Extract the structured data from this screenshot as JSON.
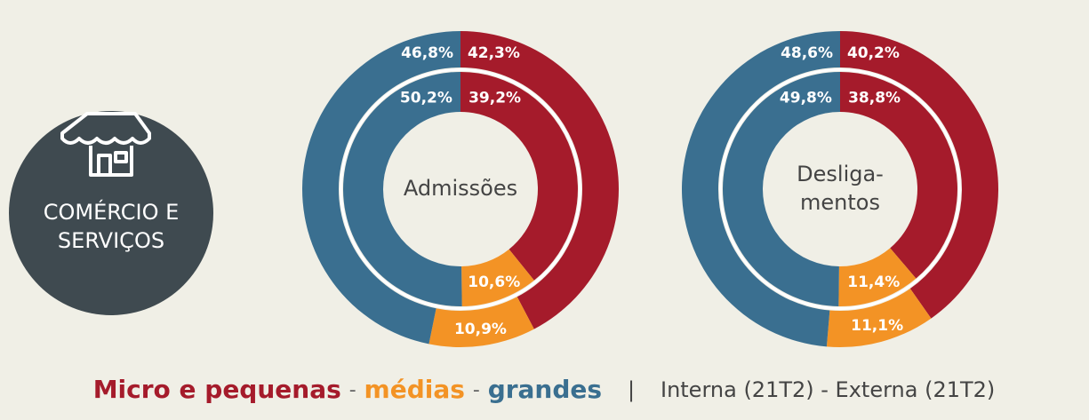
{
  "badge": {
    "lines": [
      "COMÉRCIO E",
      "SERVIÇOS"
    ]
  },
  "legend": {
    "categories": [
      "Micro e pequenas",
      "médias",
      "grandes"
    ],
    "colors": [
      "#a51b2b",
      "#f39325",
      "#3a6f90"
    ],
    "separator": "-",
    "divider": "|",
    "ring_legend": "Interna (21T2) - Externa (21T2)"
  },
  "chart_data": [
    {
      "type": "donut",
      "center_label": [
        "Admissões"
      ],
      "series": [
        {
          "values": [
            39.2,
            10.6,
            50.2
          ],
          "value_labels": [
            "39,2%",
            "10,6%",
            "50,2%"
          ]
        },
        {
          "values": [
            42.3,
            10.9,
            46.8
          ],
          "value_labels": [
            "42,3%",
            "10,9%",
            "46,8%"
          ]
        }
      ]
    },
    {
      "type": "donut",
      "center_label": [
        "Desliga-",
        "mentos"
      ],
      "series": [
        {
          "values": [
            38.8,
            11.4,
            49.8
          ],
          "value_labels": [
            "38,8%",
            "11,4%",
            "49,8%"
          ]
        },
        {
          "values": [
            40.2,
            11.1,
            48.6
          ],
          "value_labels": [
            "40,2%",
            "11,1%",
            "48,6%"
          ]
        }
      ]
    }
  ]
}
